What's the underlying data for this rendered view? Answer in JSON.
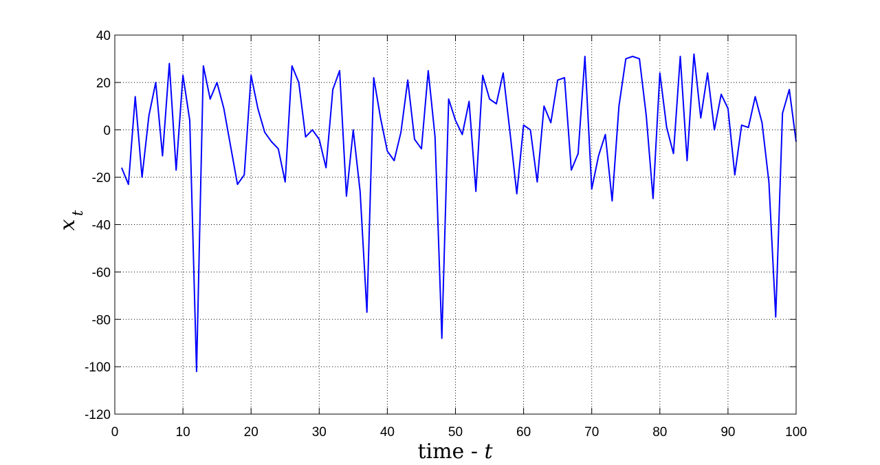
{
  "chart_data": {
    "type": "line",
    "xlabel_text": "time - ",
    "xlabel_var": "t",
    "ylabel_var": "x",
    "ylabel_sub": "t",
    "xlim": [
      0,
      100
    ],
    "ylim": [
      -120,
      40
    ],
    "xticks": [
      0,
      10,
      20,
      30,
      40,
      50,
      60,
      70,
      80,
      90,
      100
    ],
    "yticks": [
      -120,
      -100,
      -80,
      -60,
      -40,
      -20,
      0,
      20,
      40
    ],
    "grid": true,
    "grid_style": "dotted",
    "line_color": "#0000ff",
    "series": [
      {
        "x": [
          1,
          2,
          3,
          4,
          5,
          6,
          7,
          8,
          9,
          10,
          11,
          12,
          13,
          14,
          15,
          16,
          17,
          18,
          19,
          20,
          21,
          22,
          23,
          24,
          25,
          26,
          27,
          28,
          29,
          30,
          31,
          32,
          33,
          34,
          35,
          36,
          37,
          38,
          39,
          40,
          41,
          42,
          43,
          44,
          45,
          46,
          47,
          48,
          49,
          50,
          51,
          52,
          53,
          54,
          55,
          56,
          57,
          58,
          59,
          60,
          61,
          62,
          63,
          64,
          65,
          66,
          67,
          68,
          69,
          70,
          71,
          72,
          73,
          74,
          75,
          76,
          77,
          78,
          79,
          80,
          81,
          82,
          83,
          84,
          85,
          86,
          87,
          88,
          89,
          90,
          91,
          92,
          93,
          94,
          95,
          96,
          97,
          98,
          99,
          100
        ],
        "values": [
          -16,
          -23,
          14,
          -20,
          6,
          20,
          -11,
          28,
          -17,
          23,
          4,
          -102,
          27,
          13,
          20,
          9,
          -7,
          -23,
          -19,
          23,
          9,
          -1,
          -5,
          -8,
          -22,
          27,
          20,
          -3,
          0,
          -4,
          -16,
          17,
          25,
          -28,
          0,
          -26,
          -77,
          22,
          5,
          -9,
          -13,
          -1,
          21,
          -4,
          -8,
          25,
          -3,
          -88,
          13,
          4,
          -2,
          12,
          -26,
          23,
          13,
          11,
          24,
          -1,
          -27,
          2,
          0,
          -22,
          10,
          3,
          21,
          22,
          -17,
          -10,
          31,
          -25,
          -11,
          -2,
          -30,
          10,
          30,
          31,
          30,
          6,
          -29,
          24,
          1,
          -10,
          31,
          -13,
          32,
          5,
          24,
          0,
          15,
          9,
          -19,
          2,
          1,
          14,
          3,
          -22,
          -79,
          7,
          17,
          -5
        ]
      }
    ]
  }
}
